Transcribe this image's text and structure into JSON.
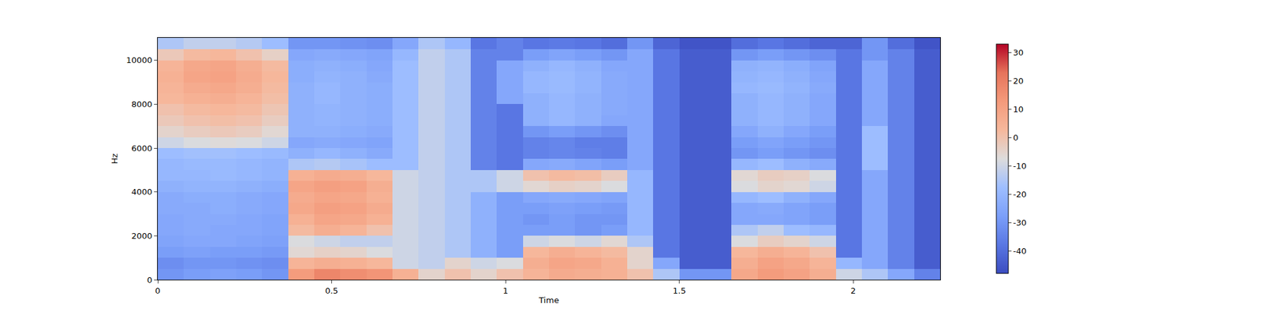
{
  "chart_data": {
    "type": "heatmap",
    "xlabel": "Time",
    "ylabel": "Hz",
    "x": [
      0,
      0.075,
      0.15,
      0.225,
      0.3,
      0.375,
      0.45,
      0.525,
      0.6,
      0.675,
      0.75,
      0.825,
      0.9,
      0.975,
      1.05,
      1.125,
      1.2,
      1.275,
      1.35,
      1.425,
      1.5,
      1.575,
      1.65,
      1.725,
      1.8,
      1.875,
      1.95,
      2.025,
      2.1,
      2.175,
      2.25
    ],
    "y": [
      0,
      500,
      1000,
      1500,
      2000,
      2500,
      3000,
      3500,
      4000,
      4500,
      5000,
      5500,
      6000,
      6500,
      7000,
      7500,
      8000,
      8500,
      9000,
      9500,
      10000,
      10500,
      11025
    ],
    "z": [
      [
        -30,
        -28,
        -27,
        -28,
        -30,
        12,
        18,
        16,
        14,
        5,
        -5,
        0,
        -5,
        0,
        4,
        7,
        6,
        5,
        0,
        -15,
        -30,
        -30,
        8,
        12,
        10,
        6,
        -10,
        -15,
        -25,
        -35
      ],
      [
        -32,
        -30,
        -30,
        -31,
        -32,
        4,
        6,
        5,
        3,
        -10,
        -12,
        -5,
        -10,
        -8,
        6,
        9,
        8,
        5,
        -5,
        -25,
        -44,
        -44,
        6,
        10,
        8,
        4,
        -20,
        -25,
        -35,
        -44
      ],
      [
        -28,
        -27,
        -28,
        -28,
        -29,
        -6,
        -4,
        -5,
        -8,
        -10,
        -12,
        -15,
        -22,
        -28,
        3,
        6,
        4,
        2,
        -5,
        -38,
        -44,
        -44,
        3,
        6,
        4,
        0,
        -38,
        -25,
        -35,
        -44
      ],
      [
        -26,
        -25,
        -25,
        -26,
        -27,
        -8,
        -10,
        -12,
        -12,
        -10,
        -12,
        -15,
        -22,
        -28,
        -10,
        -8,
        -10,
        -6,
        -15,
        -38,
        -44,
        -44,
        -8,
        -3,
        -5,
        -10,
        -38,
        -25,
        -35,
        -44
      ],
      [
        -25,
        -24,
        -25,
        -25,
        -26,
        2,
        6,
        4,
        0,
        -10,
        -12,
        -15,
        -22,
        -28,
        -28,
        -28,
        -30,
        -28,
        -20,
        -38,
        -44,
        -44,
        -15,
        -12,
        -18,
        -20,
        -38,
        -25,
        -35,
        -44
      ],
      [
        -25,
        -24,
        -24,
        -25,
        -26,
        5,
        9,
        8,
        5,
        -10,
        -12,
        -15,
        -22,
        -28,
        -30,
        -28,
        -30,
        -30,
        -20,
        -38,
        -44,
        -44,
        -25,
        -25,
        -26,
        -28,
        -38,
        -25,
        -35,
        -44
      ],
      [
        -24,
        -24,
        -23,
        -24,
        -25,
        8,
        11,
        10,
        7,
        -10,
        -12,
        -15,
        -22,
        -28,
        -28,
        -27,
        -28,
        -29,
        -20,
        -38,
        -44,
        -44,
        -25,
        -24,
        -26,
        -28,
        -38,
        -25,
        -35,
        -44
      ],
      [
        -24,
        -23,
        -23,
        -24,
        -25,
        7,
        9,
        8,
        5,
        -10,
        -12,
        -15,
        -22,
        -28,
        -25,
        -24,
        -25,
        -26,
        -20,
        -38,
        -44,
        -44,
        -20,
        -18,
        -22,
        -25,
        -38,
        -25,
        -35,
        -44
      ],
      [
        -22,
        -21,
        -21,
        -22,
        -23,
        9,
        11,
        10,
        6,
        -10,
        -12,
        -15,
        -15,
        -10,
        -6,
        -4,
        -5,
        -8,
        -20,
        -38,
        -44,
        -44,
        -8,
        -5,
        -6,
        -10,
        -38,
        -25,
        -35,
        -44
      ],
      [
        -20,
        -20,
        -19,
        -20,
        -21,
        5,
        7,
        6,
        3,
        -10,
        -12,
        -15,
        -15,
        -10,
        0,
        2,
        1,
        -3,
        -20,
        -38,
        -44,
        -44,
        -6,
        -3,
        -4,
        -8,
        -38,
        -25,
        -35,
        -44
      ],
      [
        -20,
        -19,
        -19,
        -20,
        -21,
        -15,
        -14,
        -16,
        -18,
        -18,
        -12,
        -15,
        -35,
        -38,
        -25,
        -24,
        -26,
        -28,
        -25,
        -38,
        -44,
        -44,
        -20,
        -18,
        -22,
        -24,
        -38,
        -18,
        -35,
        -44
      ],
      [
        -18,
        -17,
        -17,
        -18,
        -19,
        -22,
        -20,
        -22,
        -24,
        -18,
        -12,
        -15,
        -35,
        -38,
        -35,
        -34,
        -35,
        -36,
        -25,
        -38,
        -44,
        -44,
        -30,
        -28,
        -30,
        -32,
        -38,
        -18,
        -35,
        -44
      ],
      [
        -10,
        -8,
        -7,
        -8,
        -10,
        -25,
        -24,
        -25,
        -26,
        -18,
        -12,
        -15,
        -35,
        -38,
        -35,
        -34,
        -36,
        -36,
        -25,
        -38,
        -44,
        -44,
        -28,
        -26,
        -28,
        -30,
        -38,
        -18,
        -35,
        -44
      ],
      [
        -5,
        -3,
        -2,
        -3,
        -6,
        -22,
        -22,
        -23,
        -24,
        -18,
        -12,
        -15,
        -35,
        -38,
        -30,
        -28,
        -30,
        -32,
        -25,
        -38,
        -44,
        -44,
        -25,
        -22,
        -25,
        -28,
        -38,
        -18,
        -35,
        -44
      ],
      [
        -2,
        0,
        1,
        0,
        -3,
        -22,
        -21,
        -22,
        -23,
        -18,
        -12,
        -15,
        -35,
        -38,
        -22,
        -20,
        -22,
        -25,
        -25,
        -38,
        -44,
        -44,
        -22,
        -20,
        -22,
        -25,
        -38,
        -25,
        -35,
        -44
      ],
      [
        0,
        2,
        3,
        2,
        -1,
        -22,
        -21,
        -22,
        -23,
        -18,
        -12,
        -15,
        -35,
        -38,
        -22,
        -20,
        -22,
        -24,
        -25,
        -38,
        -44,
        -44,
        -22,
        -20,
        -22,
        -25,
        -38,
        -25,
        -35,
        -44
      ],
      [
        3,
        5,
        6,
        4,
        1,
        -22,
        -20,
        -22,
        -23,
        -18,
        -12,
        -15,
        -35,
        -25,
        -22,
        -20,
        -22,
        -24,
        -25,
        -38,
        -44,
        -44,
        -22,
        -20,
        -22,
        -25,
        -38,
        -25,
        -35,
        -44
      ],
      [
        4,
        7,
        8,
        6,
        2,
        -22,
        -20,
        -22,
        -23,
        -18,
        -12,
        -15,
        -35,
        -25,
        -20,
        -19,
        -21,
        -24,
        -25,
        -38,
        -44,
        -44,
        -20,
        -19,
        -21,
        -24,
        -38,
        -25,
        -35,
        -44
      ],
      [
        5,
        9,
        10,
        7,
        3,
        -23,
        -21,
        -22,
        -24,
        -18,
        -12,
        -15,
        -35,
        -25,
        -20,
        -19,
        -21,
        -24,
        -25,
        -38,
        -44,
        -44,
        -21,
        -20,
        -22,
        -25,
        -38,
        -25,
        -35,
        -44
      ],
      [
        4,
        8,
        9,
        6,
        2,
        -23,
        -22,
        -23,
        -25,
        -18,
        -12,
        -15,
        -35,
        -25,
        -22,
        -20,
        -22,
        -25,
        -25,
        -38,
        -44,
        -44,
        -22,
        -21,
        -23,
        -26,
        -38,
        -25,
        -35,
        -44
      ],
      [
        -2,
        2,
        3,
        0,
        -4,
        -25,
        -24,
        -25,
        -26,
        -20,
        -12,
        -15,
        -35,
        -35,
        -28,
        -26,
        -28,
        -30,
        -25,
        -38,
        -44,
        -44,
        -30,
        -28,
        -30,
        -32,
        -38,
        -30,
        -35,
        -44
      ],
      [
        -15,
        -12,
        -12,
        -14,
        -18,
        -30,
        -30,
        -31,
        -32,
        -25,
        -15,
        -20,
        -38,
        -35,
        -38,
        -37,
        -38,
        -40,
        -30,
        -42,
        -46,
        -46,
        -40,
        -38,
        -40,
        -42,
        -42,
        -30,
        -40,
        -46
      ]
    ],
    "xlim": [
      0,
      2.25
    ],
    "ylim": [
      0,
      11025
    ],
    "xticks": [
      0,
      0.5,
      1,
      1.5,
      2
    ],
    "yticks": [
      0,
      2000,
      4000,
      6000,
      8000,
      10000
    ],
    "colorbar_range": [
      -48,
      33
    ],
    "colorbar_ticks": [
      -40,
      -30,
      -20,
      -10,
      0,
      10,
      20,
      30
    ]
  }
}
